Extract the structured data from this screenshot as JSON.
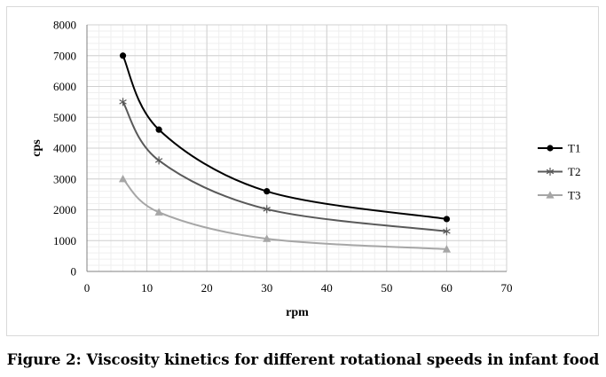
{
  "caption": "Figure 2: Viscosity kinetics for different rotational speeds in infant food",
  "chart_data": {
    "type": "line",
    "title": "",
    "xlabel": "rpm",
    "ylabel": "cps",
    "xlim": [
      0,
      70
    ],
    "ylim": [
      0,
      8000
    ],
    "x_ticks": [
      0,
      10,
      20,
      30,
      40,
      50,
      60,
      70
    ],
    "y_ticks": [
      0,
      1000,
      2000,
      3000,
      4000,
      5000,
      6000,
      7000,
      8000
    ],
    "grid": "major and minor gridlines",
    "smooth_lines": true,
    "legend_position": "right",
    "x": [
      6,
      12,
      30,
      60
    ],
    "series": [
      {
        "name": "T1",
        "values": [
          7000,
          4600,
          2600,
          1700
        ],
        "color": "#000000",
        "marker": "circle"
      },
      {
        "name": "T2",
        "values": [
          5500,
          3600,
          2020,
          1300
        ],
        "color": "#595959",
        "marker": "asterisk"
      },
      {
        "name": "T3",
        "values": [
          3000,
          1920,
          1060,
          720
        ],
        "color": "#a6a6a6",
        "marker": "triangle"
      }
    ]
  }
}
